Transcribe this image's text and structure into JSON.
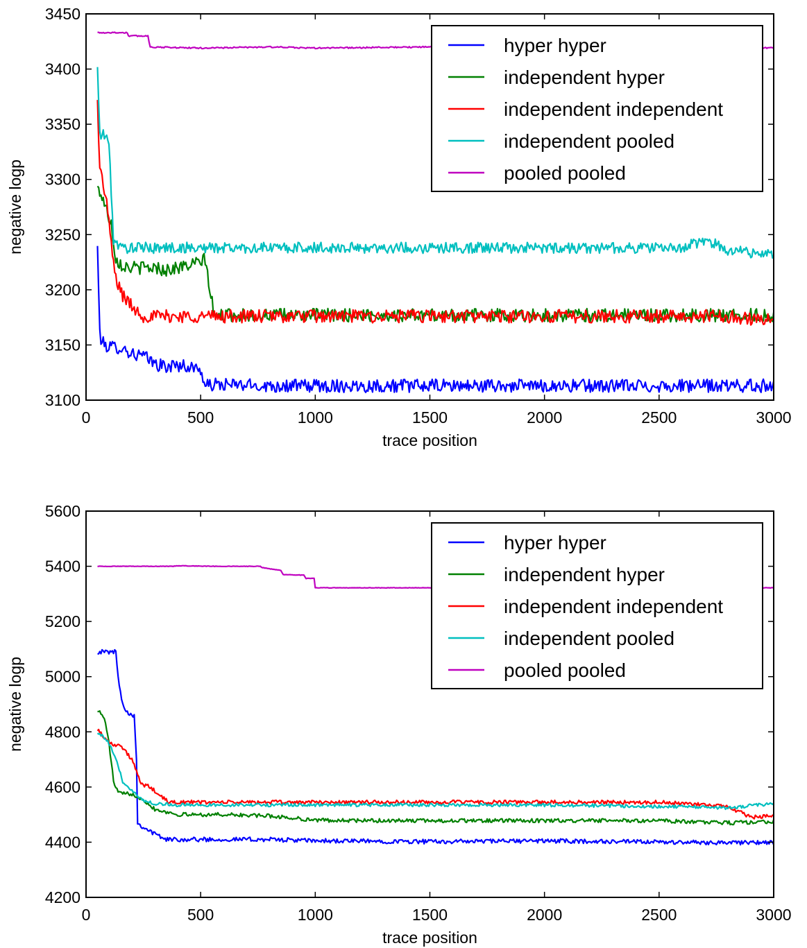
{
  "chart_data": [
    {
      "type": "line",
      "title": "",
      "xlabel": "trace position",
      "ylabel": "negative logp",
      "xlim": [
        0,
        3000
      ],
      "ylim": [
        3100,
        3450
      ],
      "xticks": [
        "0",
        "500",
        "1000",
        "1500",
        "2000",
        "2500",
        "3000"
      ],
      "yticks": [
        "3100",
        "3150",
        "3200",
        "3250",
        "3300",
        "3350",
        "3400",
        "3450"
      ],
      "legend_position": "top-right",
      "grid": false,
      "series": [
        {
          "name": "hyper hyper",
          "color": "#0000ff",
          "x": [
            50,
            55,
            60,
            70,
            100,
            150,
            200,
            250,
            300,
            350,
            400,
            450,
            500,
            520,
            550,
            600,
            800,
            1000,
            1200,
            1400,
            1600,
            1800,
            2000,
            2200,
            2400,
            2600,
            2800,
            3000
          ],
          "y": [
            3238,
            3200,
            3160,
            3152,
            3148,
            3148,
            3142,
            3140,
            3133,
            3130,
            3132,
            3130,
            3128,
            3112,
            3114,
            3114,
            3113,
            3113,
            3113,
            3113,
            3113,
            3113,
            3113,
            3113,
            3113,
            3113,
            3113,
            3113
          ],
          "noise": 6
        },
        {
          "name": "independent hyper",
          "color": "#008000",
          "x": [
            50,
            70,
            90,
            110,
            130,
            160,
            200,
            250,
            300,
            350,
            400,
            450,
            500,
            520,
            540,
            560,
            600,
            800,
            1000,
            1200,
            1400,
            1600,
            1800,
            2000,
            2200,
            2400,
            2600,
            2800,
            3000
          ],
          "y": [
            3292,
            3285,
            3272,
            3260,
            3228,
            3222,
            3220,
            3220,
            3220,
            3218,
            3220,
            3222,
            3225,
            3228,
            3200,
            3176,
            3177,
            3177,
            3177,
            3177,
            3177,
            3177,
            3177,
            3177,
            3177,
            3177,
            3177,
            3177,
            3177
          ],
          "noise": 6
        },
        {
          "name": "independent independent",
          "color": "#ff0000",
          "x": [
            50,
            60,
            70,
            80,
            90,
            110,
            130,
            160,
            200,
            250,
            300,
            400,
            600,
            800,
            1000,
            1200,
            1400,
            1600,
            1800,
            2000,
            2200,
            2400,
            2600,
            2800,
            3000
          ],
          "y": [
            3370,
            3310,
            3300,
            3290,
            3280,
            3240,
            3210,
            3195,
            3185,
            3176,
            3176,
            3176,
            3176,
            3176,
            3176,
            3176,
            3176,
            3176,
            3176,
            3176,
            3176,
            3176,
            3176,
            3176,
            3172
          ],
          "noise": 6
        },
        {
          "name": "independent pooled",
          "color": "#00bfbf",
          "x": [
            50,
            60,
            70,
            90,
            100,
            110,
            120,
            150,
            200,
            400,
            600,
            800,
            1000,
            1200,
            1400,
            1600,
            1800,
            2000,
            2200,
            2400,
            2600,
            2700,
            2800,
            3000
          ],
          "y": [
            3400,
            3340,
            3340,
            3340,
            3330,
            3290,
            3245,
            3238,
            3238,
            3238,
            3238,
            3238,
            3238,
            3238,
            3238,
            3238,
            3238,
            3238,
            3238,
            3238,
            3238,
            3245,
            3236,
            3232
          ],
          "noise": 5
        },
        {
          "name": "pooled pooled",
          "color": "#bf00bf",
          "x": [
            50,
            180,
            185,
            270,
            280,
            500,
            800,
            1000,
            1500,
            2000,
            2500,
            3000
          ],
          "y": [
            3433,
            3433,
            3430,
            3430,
            3420,
            3419,
            3420,
            3419,
            3420,
            3420,
            3420,
            3419
          ],
          "noise": 0.6
        }
      ]
    },
    {
      "type": "line",
      "title": "",
      "xlabel": "trace position",
      "ylabel": "negative logp",
      "xlim": [
        0,
        3000
      ],
      "ylim": [
        4200,
        5600
      ],
      "xticks": [
        "0",
        "500",
        "1000",
        "1500",
        "2000",
        "2500",
        "3000"
      ],
      "yticks": [
        "4200",
        "4400",
        "4600",
        "4800",
        "5000",
        "5200",
        "5400",
        "5600"
      ],
      "legend_position": "top-right",
      "grid": false,
      "series": [
        {
          "name": "hyper hyper",
          "color": "#0000ff",
          "x": [
            50,
            130,
            140,
            160,
            180,
            210,
            220,
            225,
            240,
            300,
            350,
            500,
            800,
            1000,
            1500,
            2000,
            2500,
            3000
          ],
          "y": [
            5090,
            5090,
            5000,
            4900,
            4870,
            4860,
            4700,
            4470,
            4460,
            4430,
            4410,
            4410,
            4410,
            4405,
            4402,
            4405,
            4400,
            4398
          ],
          "noise": 8
        },
        {
          "name": "independent hyper",
          "color": "#008000",
          "x": [
            50,
            80,
            100,
            120,
            140,
            160,
            200,
            240,
            300,
            400,
            600,
            800,
            1000,
            1200,
            1500,
            2000,
            2500,
            2800,
            3000
          ],
          "y": [
            4880,
            4850,
            4760,
            4620,
            4580,
            4575,
            4575,
            4560,
            4520,
            4500,
            4500,
            4495,
            4480,
            4478,
            4478,
            4478,
            4478,
            4470,
            4475
          ],
          "noise": 7
        },
        {
          "name": "independent independent",
          "color": "#ff0000",
          "x": [
            50,
            100,
            150,
            200,
            240,
            280,
            320,
            360,
            400,
            600,
            800,
            1000,
            1500,
            2000,
            2500,
            2800,
            2900,
            3000
          ],
          "y": [
            4810,
            4760,
            4750,
            4700,
            4610,
            4600,
            4570,
            4545,
            4545,
            4545,
            4545,
            4545,
            4545,
            4545,
            4545,
            4530,
            4490,
            4495
          ],
          "noise": 7
        },
        {
          "name": "independent pooled",
          "color": "#00bfbf",
          "x": [
            50,
            90,
            110,
            130,
            160,
            200,
            230,
            260,
            300,
            400,
            600,
            800,
            1000,
            1500,
            2000,
            2500,
            2800,
            3000
          ],
          "y": [
            4800,
            4770,
            4740,
            4700,
            4620,
            4590,
            4560,
            4550,
            4540,
            4535,
            4535,
            4535,
            4535,
            4535,
            4535,
            4530,
            4525,
            4540
          ],
          "noise": 6
        },
        {
          "name": "pooled pooled",
          "color": "#bf00bf",
          "x": [
            50,
            380,
            400,
            560,
            760,
            770,
            850,
            860,
            950,
            960,
            995,
            1000,
            1500,
            1700,
            2000,
            2500,
            3000
          ],
          "y": [
            5400,
            5400,
            5402,
            5400,
            5400,
            5395,
            5385,
            5370,
            5368,
            5356,
            5356,
            5322,
            5322,
            5321,
            5322,
            5322,
            5322
          ],
          "noise": 0.8
        }
      ]
    }
  ]
}
